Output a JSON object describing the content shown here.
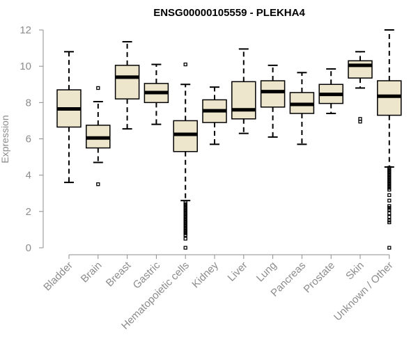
{
  "chart_data": {
    "type": "box",
    "title": "ENSG00000105559 - PLEKHA4",
    "ylabel": "Expression",
    "xlabel": "",
    "ylim": [
      0,
      12
    ],
    "yticks": [
      0,
      2,
      4,
      6,
      8,
      10,
      12
    ],
    "grid": false,
    "box_fill": "#ede6cc",
    "categories": [
      "Bladder",
      "Brain",
      "Breast",
      "Gastric",
      "Hematopoietic cells",
      "Kidney",
      "Liver",
      "Lung",
      "Pancreas",
      "Prostate",
      "Skin",
      "Unknown / Other"
    ],
    "boxes": [
      {
        "label": "Bladder",
        "whisker_low": 3.6,
        "q1": 6.65,
        "median": 7.65,
        "q3": 8.7,
        "whisker_high": 10.8,
        "outliers": []
      },
      {
        "label": "Brain",
        "whisker_low": 4.7,
        "q1": 5.5,
        "median": 6.05,
        "q3": 6.75,
        "whisker_high": 8.05,
        "outliers": [
          3.5,
          8.8
        ]
      },
      {
        "label": "Breast",
        "whisker_low": 6.55,
        "q1": 8.2,
        "median": 9.4,
        "q3": 10.05,
        "whisker_high": 11.35,
        "outliers": []
      },
      {
        "label": "Gastric",
        "whisker_low": 6.8,
        "q1": 8.0,
        "median": 8.55,
        "q3": 9.05,
        "whisker_high": 10.1,
        "outliers": []
      },
      {
        "label": "Hematopoietic cells",
        "whisker_low": 2.6,
        "q1": 5.3,
        "median": 6.25,
        "q3": 7.0,
        "whisker_high": 9.0,
        "outliers": [
          10.1,
          2.5,
          2.4,
          2.3,
          2.2,
          2.1,
          2.0,
          1.9,
          1.8,
          1.7,
          1.6,
          1.5,
          1.4,
          1.3,
          1.2,
          1.1,
          1.0,
          0.9,
          0.8,
          0.7,
          0.5,
          0.0
        ]
      },
      {
        "label": "Kidney",
        "whisker_low": 5.7,
        "q1": 6.9,
        "median": 7.55,
        "q3": 8.15,
        "whisker_high": 8.85,
        "outliers": []
      },
      {
        "label": "Liver",
        "whisker_low": 6.3,
        "q1": 7.1,
        "median": 7.6,
        "q3": 9.15,
        "whisker_high": 10.95,
        "outliers": []
      },
      {
        "label": "Lung",
        "whisker_low": 6.1,
        "q1": 7.75,
        "median": 8.6,
        "q3": 9.2,
        "whisker_high": 10.05,
        "outliers": []
      },
      {
        "label": "Pancreas",
        "whisker_low": 5.7,
        "q1": 7.4,
        "median": 7.9,
        "q3": 8.55,
        "whisker_high": 9.65,
        "outliers": []
      },
      {
        "label": "Prostate",
        "whisker_low": 7.4,
        "q1": 7.95,
        "median": 8.45,
        "q3": 9.0,
        "whisker_high": 9.85,
        "outliers": []
      },
      {
        "label": "Skin",
        "whisker_low": 8.8,
        "q1": 9.35,
        "median": 10.05,
        "q3": 10.3,
        "whisker_high": 10.8,
        "outliers": [
          7.1,
          6.95
        ]
      },
      {
        "label": "Unknown / Other",
        "whisker_low": 4.45,
        "q1": 7.3,
        "median": 8.35,
        "q3": 9.2,
        "whisker_high": 12.0,
        "outliers": [
          4.4,
          4.3,
          4.2,
          4.1,
          4.0,
          3.9,
          3.8,
          3.7,
          3.6,
          3.5,
          3.4,
          3.3,
          3.2,
          2.9,
          2.6,
          2.3,
          2.2,
          2.1,
          1.9,
          1.7,
          1.5,
          1.4,
          0.0
        ]
      }
    ]
  }
}
